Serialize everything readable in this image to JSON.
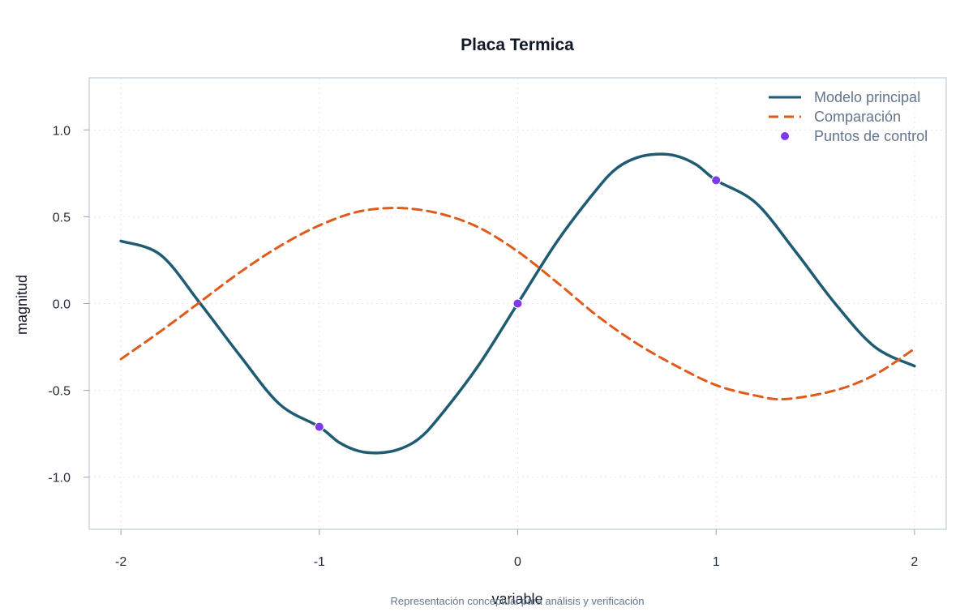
{
  "chart_data": {
    "type": "line",
    "title": "Placa Termica",
    "xlabel": "variable",
    "ylabel": "magnitud",
    "caption": "Representación conceptual para análisis y verificación",
    "xlim": [
      -2.16,
      2.16
    ],
    "ylim": [
      -1.3,
      1.3
    ],
    "x_ticks": [
      -2,
      -1,
      0,
      1,
      2
    ],
    "x_tick_labels": [
      "-2",
      "-1",
      "0",
      "1",
      "2"
    ],
    "y_ticks": [
      -1.0,
      -0.5,
      0.0,
      0.5,
      1.0
    ],
    "y_tick_labels": [
      "-1.0",
      "-0.5",
      "0.0",
      "0.5",
      "1.0"
    ],
    "grid": true,
    "legend_position": "top-right",
    "series": [
      {
        "name": "Modelo principal",
        "style": "solid",
        "color": "#1f5c73",
        "x": [
          -2.0,
          -1.8,
          -1.6,
          -1.4,
          -1.2,
          -1.0,
          -0.9,
          -0.8,
          -0.7,
          -0.6,
          -0.5,
          -0.4,
          -0.2,
          0.0,
          0.2,
          0.4,
          0.5,
          0.6,
          0.7,
          0.8,
          0.9,
          1.0,
          1.2,
          1.4,
          1.6,
          1.8,
          2.0
        ],
        "y": [
          0.36,
          0.28,
          0.0,
          -0.3,
          -0.58,
          -0.71,
          -0.8,
          -0.85,
          -0.86,
          -0.84,
          -0.78,
          -0.66,
          -0.36,
          0.0,
          0.36,
          0.66,
          0.78,
          0.84,
          0.86,
          0.85,
          0.8,
          0.71,
          0.58,
          0.3,
          0.0,
          -0.25,
          -0.36
        ]
      },
      {
        "name": "Comparación",
        "style": "dashed",
        "color": "#e05a1a",
        "x": [
          -2.0,
          -1.8,
          -1.6,
          -1.4,
          -1.2,
          -1.0,
          -0.8,
          -0.6,
          -0.4,
          -0.2,
          0.0,
          0.2,
          0.4,
          0.6,
          0.8,
          1.0,
          1.2,
          1.35,
          1.6,
          1.8,
          2.0
        ],
        "y": [
          -0.32,
          -0.16,
          0.01,
          0.18,
          0.33,
          0.45,
          0.53,
          0.55,
          0.52,
          0.44,
          0.3,
          0.12,
          -0.07,
          -0.23,
          -0.36,
          -0.47,
          -0.53,
          -0.55,
          -0.5,
          -0.41,
          -0.26
        ]
      },
      {
        "name": "Puntos de control",
        "style": "markers",
        "color": "#7c3aed",
        "x": [
          -1,
          0,
          1
        ],
        "y": [
          -0.71,
          0.0,
          0.71
        ]
      }
    ]
  }
}
